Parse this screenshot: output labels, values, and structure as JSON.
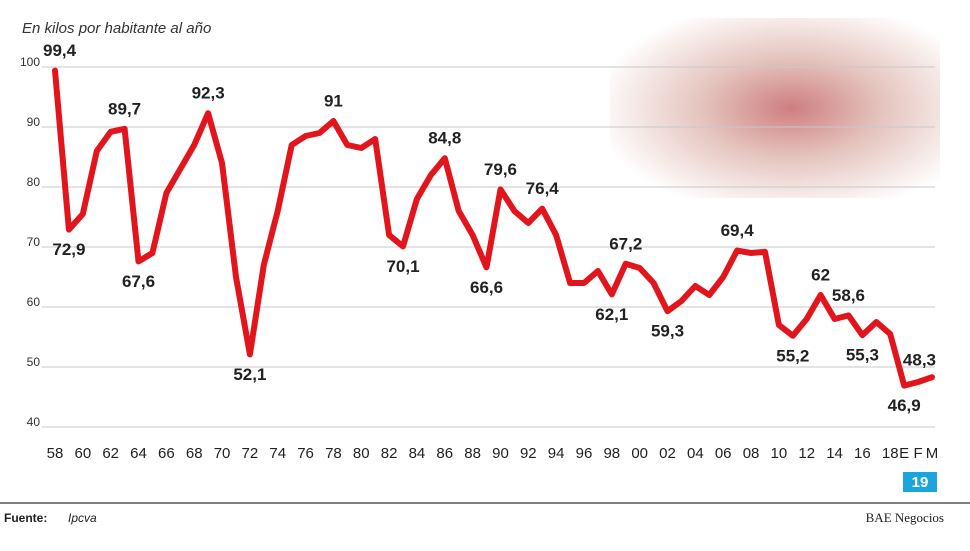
{
  "chart_data": {
    "type": "line",
    "title": "En kilos por habitante al año",
    "categories": [
      "58",
      null,
      "60",
      null,
      "62",
      null,
      "64",
      null,
      "66",
      null,
      "68",
      null,
      "70",
      null,
      "72",
      null,
      "74",
      null,
      "76",
      null,
      "78",
      null,
      "80",
      null,
      "82",
      null,
      "84",
      null,
      "86",
      null,
      "88",
      null,
      "90",
      null,
      "92",
      null,
      "94",
      null,
      "96",
      null,
      "98",
      null,
      "00",
      null,
      "02",
      null,
      "04",
      null,
      "06",
      null,
      "08",
      null,
      "10",
      null,
      "12",
      null,
      "14",
      null,
      "16",
      null,
      "18",
      "E",
      "F",
      "M"
    ],
    "values": [
      99.4,
      72.9,
      75.5,
      86,
      89.2,
      89.7,
      67.6,
      69,
      79,
      83,
      87,
      92.3,
      84,
      65,
      52.1,
      67,
      76,
      87,
      88.5,
      89,
      91,
      87,
      86.5,
      88,
      72,
      70.1,
      78,
      82,
      84.8,
      76,
      72,
      66.6,
      79.6,
      76,
      74,
      76.4,
      72,
      64,
      64,
      66,
      62.1,
      67.2,
      66.5,
      64,
      59.3,
      61,
      63.5,
      62,
      65,
      69.4,
      69,
      69.2,
      57,
      55.2,
      58,
      62,
      58,
      58.6,
      55.3,
      57.5,
      55.5,
      46.9,
      47.5,
      48.3
    ],
    "value_labels": [
      "99,4",
      "72,9",
      null,
      null,
      null,
      "89,7",
      "67,6",
      null,
      null,
      null,
      null,
      "92,3",
      null,
      null,
      "52,1",
      null,
      null,
      null,
      null,
      null,
      "91",
      null,
      null,
      null,
      null,
      "70,1",
      null,
      null,
      "84,8",
      null,
      null,
      "66,6",
      "79,6",
      null,
      null,
      "76,4",
      null,
      null,
      null,
      null,
      "62,1",
      "67,2",
      null,
      null,
      "59,3",
      null,
      null,
      null,
      null,
      "69,4",
      null,
      null,
      null,
      "55,2",
      null,
      "62",
      null,
      "58,6",
      "55,3",
      null,
      null,
      "46,9",
      null,
      "48,3"
    ],
    "color": "#e3151c",
    "ylim": [
      40,
      100
    ],
    "yticks": [
      40,
      50,
      60,
      70,
      80,
      90,
      100
    ],
    "grid": true,
    "year_box": "19",
    "source_label": "Fuente:",
    "source": "Ipcva",
    "credit": "BAE Negocios"
  }
}
